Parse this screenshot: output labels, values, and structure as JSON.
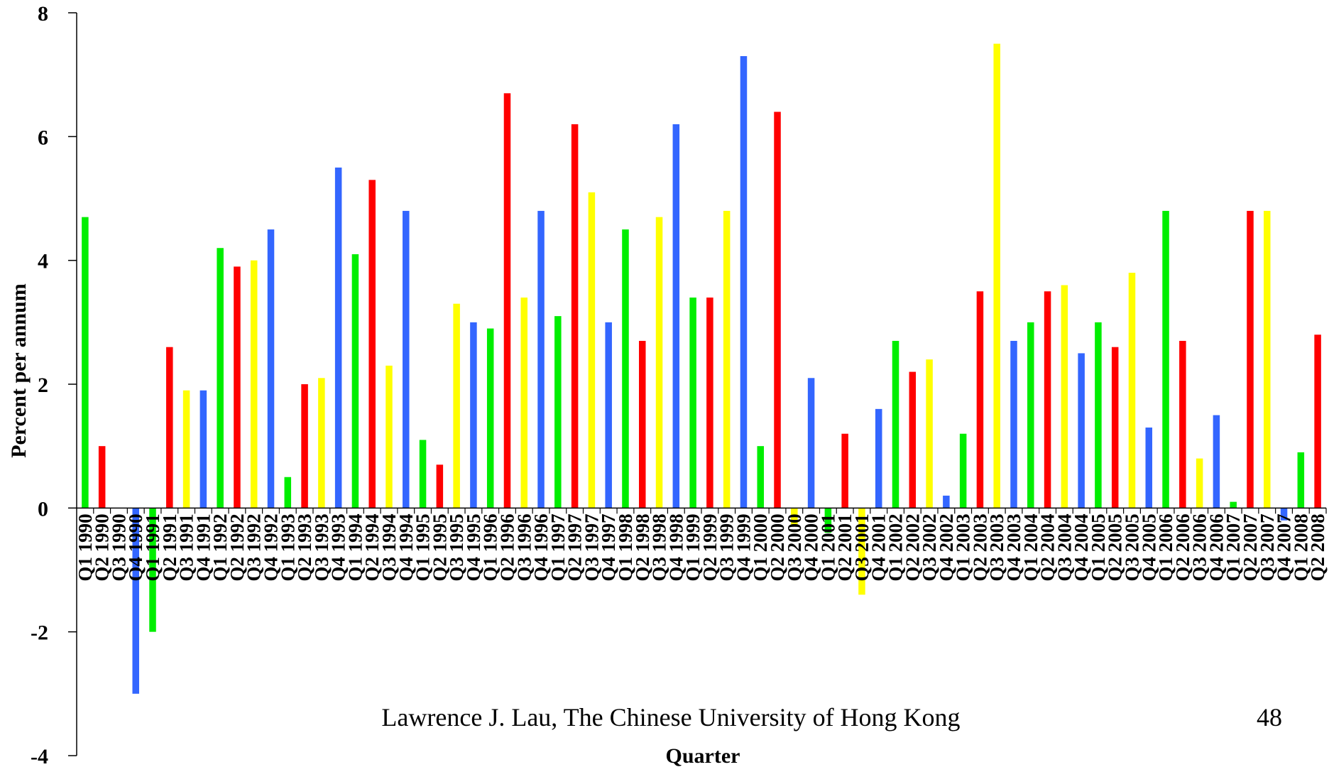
{
  "chart_data": {
    "type": "bar",
    "ylabel": "Percent per annum",
    "xlabel": "Quarter",
    "ylim": [
      -4,
      8
    ],
    "yticks": [
      "8",
      "6",
      "4",
      "2",
      "0",
      "-2",
      "-4"
    ],
    "grid": false,
    "legend": "none",
    "colors": {
      "Q1": "#00EE00",
      "Q2": "#FF0000",
      "Q3": "#FFFF00",
      "Q4": "#3366FF"
    },
    "categories": [
      "Q1 1990",
      "Q2 1990",
      "Q3 1990",
      "Q4 1990",
      "Q1 1991",
      "Q2 1991",
      "Q3 1991",
      "Q4 1991",
      "Q1 1992",
      "Q2 1992",
      "Q3 1992",
      "Q4 1992",
      "Q1 1993",
      "Q2 1993",
      "Q3 1993",
      "Q4 1993",
      "Q1 1994",
      "Q2 1994",
      "Q3 1994",
      "Q4 1994",
      "Q1 1995",
      "Q2 1995",
      "Q3 1995",
      "Q4 1995",
      "Q1 1996",
      "Q2 1996",
      "Q3 1996",
      "Q4 1996",
      "Q1 1997",
      "Q2 1997",
      "Q3 1997",
      "Q4 1997",
      "Q1 1998",
      "Q2 1998",
      "Q3 1998",
      "Q4 1998",
      "Q1 1999",
      "Q2 1999",
      "Q3 1999",
      "Q4 1999",
      "Q1 2000",
      "Q2 2000",
      "Q3 2000",
      "Q4 2000",
      "Q1 2001",
      "Q2 2001",
      "Q3 2001",
      "Q4 2001",
      "Q1 2002",
      "Q2 2002",
      "Q3 2002",
      "Q4 2002",
      "Q1 2003",
      "Q2 2003",
      "Q3 2003",
      "Q4 2003",
      "Q1 2004",
      "Q2 2004",
      "Q3 2004",
      "Q4 2004",
      "Q1 2005",
      "Q2 2005",
      "Q3 2005",
      "Q4 2005",
      "Q1 2006",
      "Q2 2006",
      "Q3 2006",
      "Q4 2006",
      "Q1 2007",
      "Q2 2007",
      "Q3 2007",
      "Q4 2007",
      "Q1 2008",
      "Q2 2008"
    ],
    "values": [
      4.7,
      1.0,
      0,
      -3.0,
      -2.0,
      2.6,
      1.9,
      1.9,
      4.2,
      3.9,
      4.0,
      4.5,
      0.5,
      2.0,
      2.1,
      5.5,
      4.1,
      5.3,
      2.3,
      4.8,
      1.1,
      0.7,
      3.3,
      3.0,
      2.9,
      6.7,
      3.4,
      4.8,
      3.1,
      6.2,
      5.1,
      3.0,
      4.5,
      2.7,
      4.7,
      6.2,
      3.4,
      3.4,
      4.8,
      7.3,
      1.0,
      6.4,
      -0.3,
      2.1,
      -0.4,
      1.2,
      -1.4,
      1.6,
      2.7,
      2.2,
      2.4,
      0.2,
      1.2,
      3.5,
      7.5,
      2.7,
      3.0,
      3.5,
      3.6,
      2.5,
      3.0,
      2.6,
      3.8,
      1.3,
      4.8,
      2.7,
      0.8,
      1.5,
      0.1,
      4.8,
      4.8,
      -0.2,
      0.9,
      2.8
    ]
  },
  "footer": {
    "credit": "Lawrence J. Lau, The Chinese University of Hong Kong",
    "page_number": "48"
  }
}
